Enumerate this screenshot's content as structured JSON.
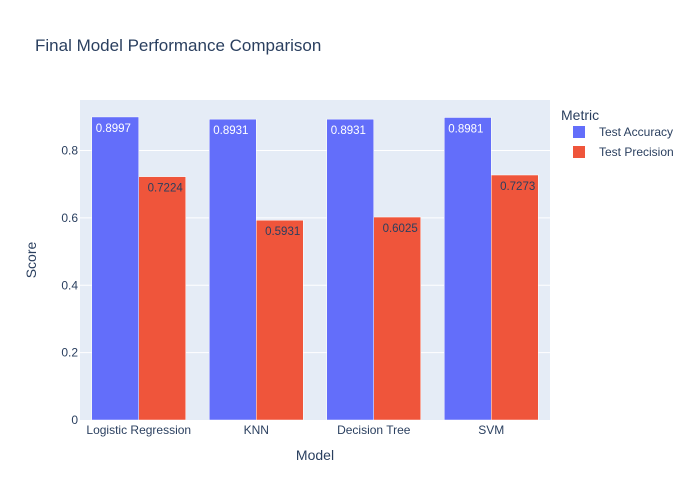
{
  "chart_data": {
    "type": "bar",
    "title": "Final Model Performance Comparison",
    "xlabel": "Model",
    "ylabel": "Score",
    "ylim": [
      0,
      0.95
    ],
    "yticks": [
      0,
      0.2,
      0.4,
      0.6,
      0.8
    ],
    "ytick_labels": [
      "0",
      "0.2",
      "0.4",
      "0.6",
      "0.8"
    ],
    "categories": [
      "Logistic Regression",
      "KNN",
      "Decision Tree",
      "SVM"
    ],
    "legend_title": "Metric",
    "legend_position": "right",
    "grid": true,
    "series": [
      {
        "name": "Test Accuracy",
        "color": "#636efa",
        "values": [
          0.8997,
          0.8931,
          0.8931,
          0.8981
        ],
        "labels": [
          "0.8997",
          "0.8931",
          "0.8931",
          "0.8981"
        ]
      },
      {
        "name": "Test Precision",
        "color": "#ef553b",
        "values": [
          0.7224,
          0.5931,
          0.6025,
          0.7273
        ],
        "labels": [
          "0.7224",
          "0.5931",
          "0.6025",
          "0.7273"
        ]
      }
    ],
    "colors": {
      "plot_background": "#e5ecf6",
      "grid": "#ffffff",
      "text": "#2a3f5f",
      "inside_label_light": "#ffffff",
      "inside_label_dark": "#2a3f5f"
    }
  }
}
